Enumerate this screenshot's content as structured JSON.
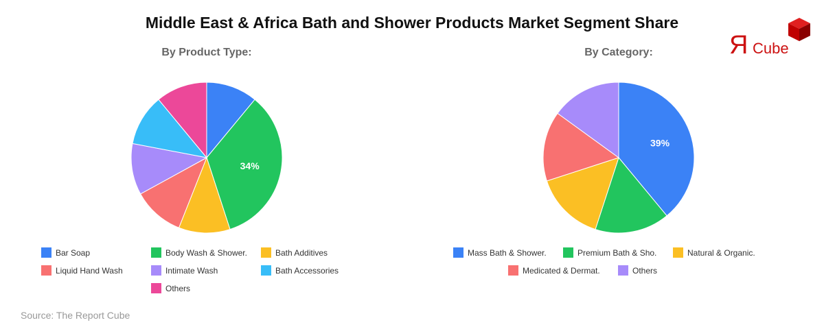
{
  "title": "Middle East & Africa Bath and Shower Products Market Segment Share",
  "source": "Source: The Report Cube",
  "logo": {
    "mirror_r": "Я",
    "text": "Cube",
    "color": "#cc1111"
  },
  "chart_data": [
    {
      "type": "pie",
      "title": "By Product Type:",
      "categories": [
        "Bar Soap",
        "Body Wash & Shower.",
        "Bath Additives",
        "Liquid Hand Wash",
        "Intimate Wash",
        "Bath Accessories",
        "Others"
      ],
      "values": [
        11,
        34,
        11,
        11,
        11,
        11,
        11
      ],
      "colors": [
        "#3b82f6",
        "#22c55e",
        "#fbbf24",
        "#f87171",
        "#a78bfa",
        "#38bdf8",
        "#ec4899"
      ],
      "labels_shown": [
        "",
        "34%",
        "",
        "",
        "",
        "",
        ""
      ],
      "legend_position": "bottom"
    },
    {
      "type": "pie",
      "title": "By Category:",
      "categories": [
        "Mass Bath & Shower.",
        "Premium Bath & Sho.",
        "Natural & Organic.",
        "Medicated & Dermat.",
        "Others"
      ],
      "values": [
        39,
        16,
        15,
        15,
        15
      ],
      "colors": [
        "#3b82f6",
        "#22c55e",
        "#fbbf24",
        "#f87171",
        "#a78bfa"
      ],
      "labels_shown": [
        "39%",
        "",
        "",
        "",
        ""
      ],
      "legend_position": "bottom"
    }
  ]
}
